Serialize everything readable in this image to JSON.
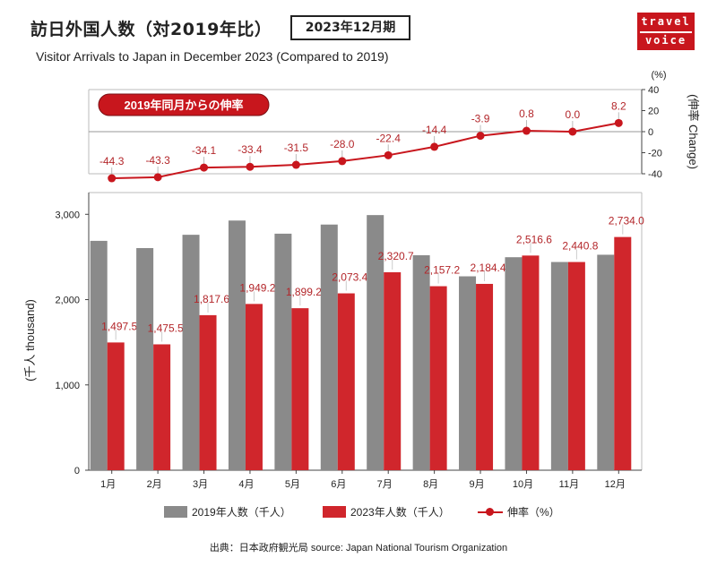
{
  "header": {
    "title": "訪日外国人数（対2019年比）",
    "period": "2023年12月期",
    "subtitle": "Visitor Arrivals to Japan in December 2023 (Compared to 2019)"
  },
  "logo": {
    "line1": "travel",
    "line2": "voice"
  },
  "colors": {
    "bar2019": "#8a8a8a",
    "bar2023": "#d0262c",
    "line": "#c8161d",
    "text_red": "#b3262a"
  },
  "chart_data": {
    "type": "bar+line",
    "categories": [
      "1月",
      "2月",
      "3月",
      "4月",
      "5月",
      "6月",
      "7月",
      "8月",
      "9月",
      "10月",
      "11月",
      "12月"
    ],
    "series": [
      {
        "name": "2019年人数（千人）",
        "values": [
          2689,
          2604,
          2760,
          2927,
          2773,
          2880,
          2991,
          2520,
          2273,
          2497,
          2441,
          2526
        ]
      },
      {
        "name": "2023年人数（千人）",
        "values": [
          1497.5,
          1475.5,
          1817.6,
          1949.2,
          1899.2,
          2073.4,
          2320.7,
          2157.2,
          2184.4,
          2516.6,
          2440.8,
          2734.0
        ],
        "labels": [
          "1,497.5",
          "1,475.5",
          "1,817.6",
          "1,949.2",
          "1,899.2",
          "2,073.4",
          "2,320.7",
          "2,157.2",
          "2,184.4",
          "2,516.6",
          "2,440.8",
          "2,734.0"
        ]
      },
      {
        "name": "伸率（%）",
        "values": [
          -44.3,
          -43.3,
          -34.1,
          -33.4,
          -31.5,
          -28.0,
          -22.4,
          -14.4,
          -3.9,
          0.8,
          0.0,
          8.2
        ],
        "labels": [
          "-44.3",
          "-43.3",
          "-34.1",
          "-33.4",
          "-31.5",
          "-28.0",
          "-22.4",
          "-14.4",
          "-3.9",
          "0.8",
          "0.0",
          "8.2"
        ]
      }
    ],
    "bar_axis": {
      "label": "(千人 thousand)",
      "ylim": [
        0,
        3000
      ],
      "ticks": [
        "0",
        "1,000",
        "2,000",
        "3,000"
      ],
      "tick_values": [
        0,
        1000,
        2000,
        3000
      ]
    },
    "line_axis": {
      "label": "(伸率 Change)",
      "unit": "(%)",
      "ylim": [
        -40,
        40
      ],
      "ticks": [
        "40",
        "20",
        "0",
        "-20",
        "-40"
      ],
      "tick_values": [
        40,
        20,
        0,
        -20,
        -40
      ]
    },
    "badge": "2019年同月からの伸率"
  },
  "legend": {
    "item1": "2019年人数（千人）",
    "item2": "2023年人数（千人）",
    "item3": "伸率（%）"
  },
  "source": "出典：日本政府観光局  source: Japan National Tourism Organization"
}
